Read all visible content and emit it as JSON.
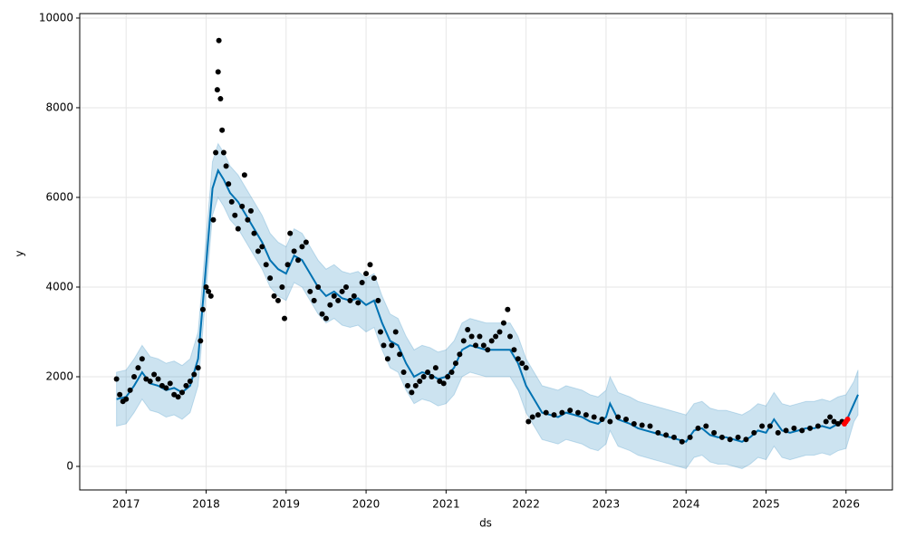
{
  "chart_data": {
    "type": "scatter",
    "xlabel": "ds",
    "ylabel": "y",
    "xlim": [
      2016.42,
      2026.58
    ],
    "ylim": [
      -525,
      10100
    ],
    "xticks": [
      2017,
      2018,
      2019,
      2020,
      2021,
      2022,
      2023,
      2024,
      2025,
      2026
    ],
    "yticks": [
      0,
      2000,
      4000,
      6000,
      8000,
      10000
    ],
    "grid": true,
    "series": [
      {
        "type": "line",
        "color": "#0072B2",
        "band_color": "#0072B2",
        "x": [
          2016.88,
          2017.0,
          2017.1,
          2017.2,
          2017.3,
          2017.4,
          2017.5,
          2017.6,
          2017.7,
          2017.8,
          2017.9,
          2018.0,
          2018.08,
          2018.15,
          2018.22,
          2018.3,
          2018.4,
          2018.5,
          2018.6,
          2018.7,
          2018.8,
          2018.9,
          2019.0,
          2019.1,
          2019.2,
          2019.3,
          2019.4,
          2019.5,
          2019.6,
          2019.7,
          2019.8,
          2019.9,
          2020.0,
          2020.1,
          2020.2,
          2020.3,
          2020.4,
          2020.5,
          2020.6,
          2020.7,
          2020.8,
          2020.9,
          2021.0,
          2021.1,
          2021.2,
          2021.3,
          2021.4,
          2021.5,
          2021.6,
          2021.7,
          2021.8,
          2021.9,
          2022.0,
          2022.1,
          2022.2,
          2022.3,
          2022.4,
          2022.5,
          2022.6,
          2022.7,
          2022.8,
          2022.9,
          2023.0,
          2023.05,
          2023.15,
          2023.3,
          2023.4,
          2023.5,
          2023.6,
          2023.7,
          2023.8,
          2023.9,
          2024.0,
          2024.1,
          2024.2,
          2024.3,
          2024.4,
          2024.5,
          2024.6,
          2024.7,
          2024.8,
          2024.9,
          2025.0,
          2025.1,
          2025.2,
          2025.3,
          2025.4,
          2025.5,
          2025.6,
          2025.7,
          2025.8,
          2025.9,
          2026.0,
          2026.1,
          2026.15
        ],
        "values": [
          1500,
          1550,
          1800,
          2100,
          1850,
          1800,
          1700,
          1750,
          1650,
          1800,
          2400,
          4500,
          6200,
          6600,
          6400,
          6100,
          5900,
          5600,
          5300,
          5000,
          4600,
          4400,
          4300,
          4700,
          4600,
          4300,
          4000,
          3800,
          3900,
          3750,
          3700,
          3750,
          3600,
          3700,
          3200,
          2800,
          2700,
          2300,
          2000,
          2100,
          2050,
          1950,
          2000,
          2200,
          2600,
          2700,
          2650,
          2600,
          2600,
          2600,
          2600,
          2300,
          1800,
          1500,
          1200,
          1150,
          1100,
          1200,
          1150,
          1100,
          1000,
          950,
          1100,
          1400,
          1050,
          950,
          850,
          800,
          750,
          700,
          650,
          600,
          550,
          800,
          850,
          700,
          650,
          650,
          600,
          550,
          650,
          800,
          750,
          1050,
          800,
          750,
          800,
          850,
          850,
          900,
          850,
          950,
          1000,
          1400,
          1600
        ],
        "lower": [
          900,
          950,
          1200,
          1500,
          1250,
          1200,
          1100,
          1150,
          1050,
          1200,
          1800,
          3900,
          5600,
          6000,
          5800,
          5500,
          5300,
          5000,
          4700,
          4400,
          4000,
          3800,
          3700,
          4100,
          4000,
          3700,
          3400,
          3200,
          3300,
          3150,
          3100,
          3150,
          3000,
          3100,
          2600,
          2200,
          2100,
          1700,
          1400,
          1500,
          1450,
          1350,
          1400,
          1600,
          2000,
          2100,
          2050,
          2000,
          2000,
          2000,
          2000,
          1700,
          1200,
          900,
          600,
          550,
          500,
          600,
          550,
          500,
          400,
          350,
          500,
          800,
          450,
          350,
          250,
          200,
          150,
          100,
          50,
          0,
          -50,
          200,
          250,
          100,
          50,
          50,
          0,
          -50,
          50,
          200,
          150,
          450,
          200,
          150,
          200,
          250,
          250,
          300,
          250,
          350,
          400,
          1000,
          1150
        ],
        "upper": [
          2100,
          2150,
          2400,
          2700,
          2450,
          2400,
          2300,
          2350,
          2250,
          2400,
          3000,
          5100,
          6800,
          7200,
          7000,
          6700,
          6500,
          6200,
          5900,
          5600,
          5200,
          5000,
          4900,
          5300,
          5200,
          4900,
          4600,
          4400,
          4500,
          4350,
          4300,
          4350,
          4200,
          4300,
          3800,
          3400,
          3300,
          2900,
          2600,
          2700,
          2650,
          2550,
          2600,
          2800,
          3200,
          3300,
          3250,
          3200,
          3200,
          3200,
          3200,
          2900,
          2400,
          2100,
          1800,
          1750,
          1700,
          1800,
          1750,
          1700,
          1600,
          1550,
          1700,
          2000,
          1650,
          1550,
          1450,
          1400,
          1350,
          1300,
          1250,
          1200,
          1150,
          1400,
          1450,
          1300,
          1250,
          1250,
          1200,
          1150,
          1250,
          1400,
          1350,
          1650,
          1400,
          1350,
          1400,
          1450,
          1450,
          1500,
          1450,
          1550,
          1600,
          1900,
          2150
        ]
      },
      {
        "type": "scatter",
        "color": "#000000",
        "x": [
          2016.88,
          2016.92,
          2016.96,
          2017.0,
          2017.05,
          2017.1,
          2017.15,
          2017.2,
          2017.25,
          2017.3,
          2017.35,
          2017.4,
          2017.45,
          2017.5,
          2017.55,
          2017.6,
          2017.65,
          2017.7,
          2017.75,
          2017.8,
          2017.85,
          2017.9,
          2017.93,
          2017.96,
          2018.0,
          2018.03,
          2018.06,
          2018.09,
          2018.12,
          2018.14,
          2018.15,
          2018.16,
          2018.18,
          2018.2,
          2018.22,
          2018.25,
          2018.28,
          2018.32,
          2018.36,
          2018.4,
          2018.45,
          2018.48,
          2018.52,
          2018.56,
          2018.6,
          2018.65,
          2018.7,
          2018.75,
          2018.8,
          2018.85,
          2018.9,
          2018.95,
          2018.98,
          2019.02,
          2019.05,
          2019.1,
          2019.15,
          2019.2,
          2019.25,
          2019.3,
          2019.35,
          2019.4,
          2019.45,
          2019.5,
          2019.55,
          2019.6,
          2019.65,
          2019.7,
          2019.75,
          2019.8,
          2019.85,
          2019.9,
          2019.95,
          2020.0,
          2020.05,
          2020.1,
          2020.15,
          2020.18,
          2020.22,
          2020.27,
          2020.32,
          2020.37,
          2020.42,
          2020.47,
          2020.52,
          2020.57,
          2020.62,
          2020.67,
          2020.72,
          2020.77,
          2020.82,
          2020.87,
          2020.92,
          2020.97,
          2021.02,
          2021.07,
          2021.12,
          2021.17,
          2021.22,
          2021.27,
          2021.32,
          2021.37,
          2021.42,
          2021.47,
          2021.52,
          2021.57,
          2021.62,
          2021.67,
          2021.72,
          2021.77,
          2021.8,
          2021.85,
          2021.9,
          2021.95,
          2022.0,
          2022.03,
          2022.08,
          2022.15,
          2022.25,
          2022.35,
          2022.45,
          2022.55,
          2022.65,
          2022.75,
          2022.85,
          2022.95,
          2023.05,
          2023.15,
          2023.25,
          2023.35,
          2023.45,
          2023.55,
          2023.65,
          2023.75,
          2023.85,
          2023.95,
          2024.05,
          2024.15,
          2024.25,
          2024.35,
          2024.45,
          2024.55,
          2024.65,
          2024.75,
          2024.85,
          2024.95,
          2025.05,
          2025.15,
          2025.25,
          2025.35,
          2025.45,
          2025.55,
          2025.65,
          2025.75,
          2025.8,
          2025.85,
          2025.9,
          2025.95
        ],
        "values": [
          1950,
          1600,
          1450,
          1500,
          1700,
          2000,
          2200,
          2400,
          1950,
          1900,
          2050,
          1950,
          1800,
          1750,
          1850,
          1600,
          1550,
          1650,
          1800,
          1900,
          2050,
          2200,
          2800,
          3500,
          4000,
          3900,
          3800,
          5500,
          7000,
          8400,
          8800,
          9500,
          8200,
          7500,
          7000,
          6700,
          6300,
          5900,
          5600,
          5300,
          5800,
          6500,
          5500,
          5700,
          5200,
          4800,
          4900,
          4500,
          4200,
          3800,
          3700,
          4000,
          3300,
          4500,
          5200,
          4800,
          4600,
          4900,
          5000,
          3900,
          3700,
          4000,
          3400,
          3300,
          3600,
          3800,
          3700,
          3900,
          4000,
          3700,
          3800,
          3650,
          4100,
          4300,
          4500,
          4200,
          3700,
          3000,
          2700,
          2400,
          2700,
          3000,
          2500,
          2100,
          1800,
          1650,
          1800,
          1900,
          2000,
          2100,
          2000,
          2200,
          1900,
          1850,
          2000,
          2100,
          2300,
          2500,
          2800,
          3050,
          2900,
          2700,
          2900,
          2700,
          2600,
          2800,
          2900,
          3000,
          3200,
          3500,
          2900,
          2600,
          2400,
          2300,
          2200,
          1000,
          1100,
          1150,
          1200,
          1150,
          1200,
          1250,
          1200,
          1150,
          1100,
          1050,
          1000,
          1100,
          1050,
          950,
          920,
          900,
          750,
          700,
          650,
          550,
          650,
          850,
          900,
          750,
          650,
          600,
          650,
          600,
          750,
          900,
          900,
          750,
          800,
          850,
          800,
          850,
          900,
          1000,
          1100,
          1000,
          950,
          1000
        ]
      },
      {
        "type": "scatter",
        "color": "#ff0000",
        "x": [
          2025.98,
          2026.0,
          2026.02
        ],
        "values": [
          950,
          1000,
          1050
        ]
      }
    ]
  }
}
